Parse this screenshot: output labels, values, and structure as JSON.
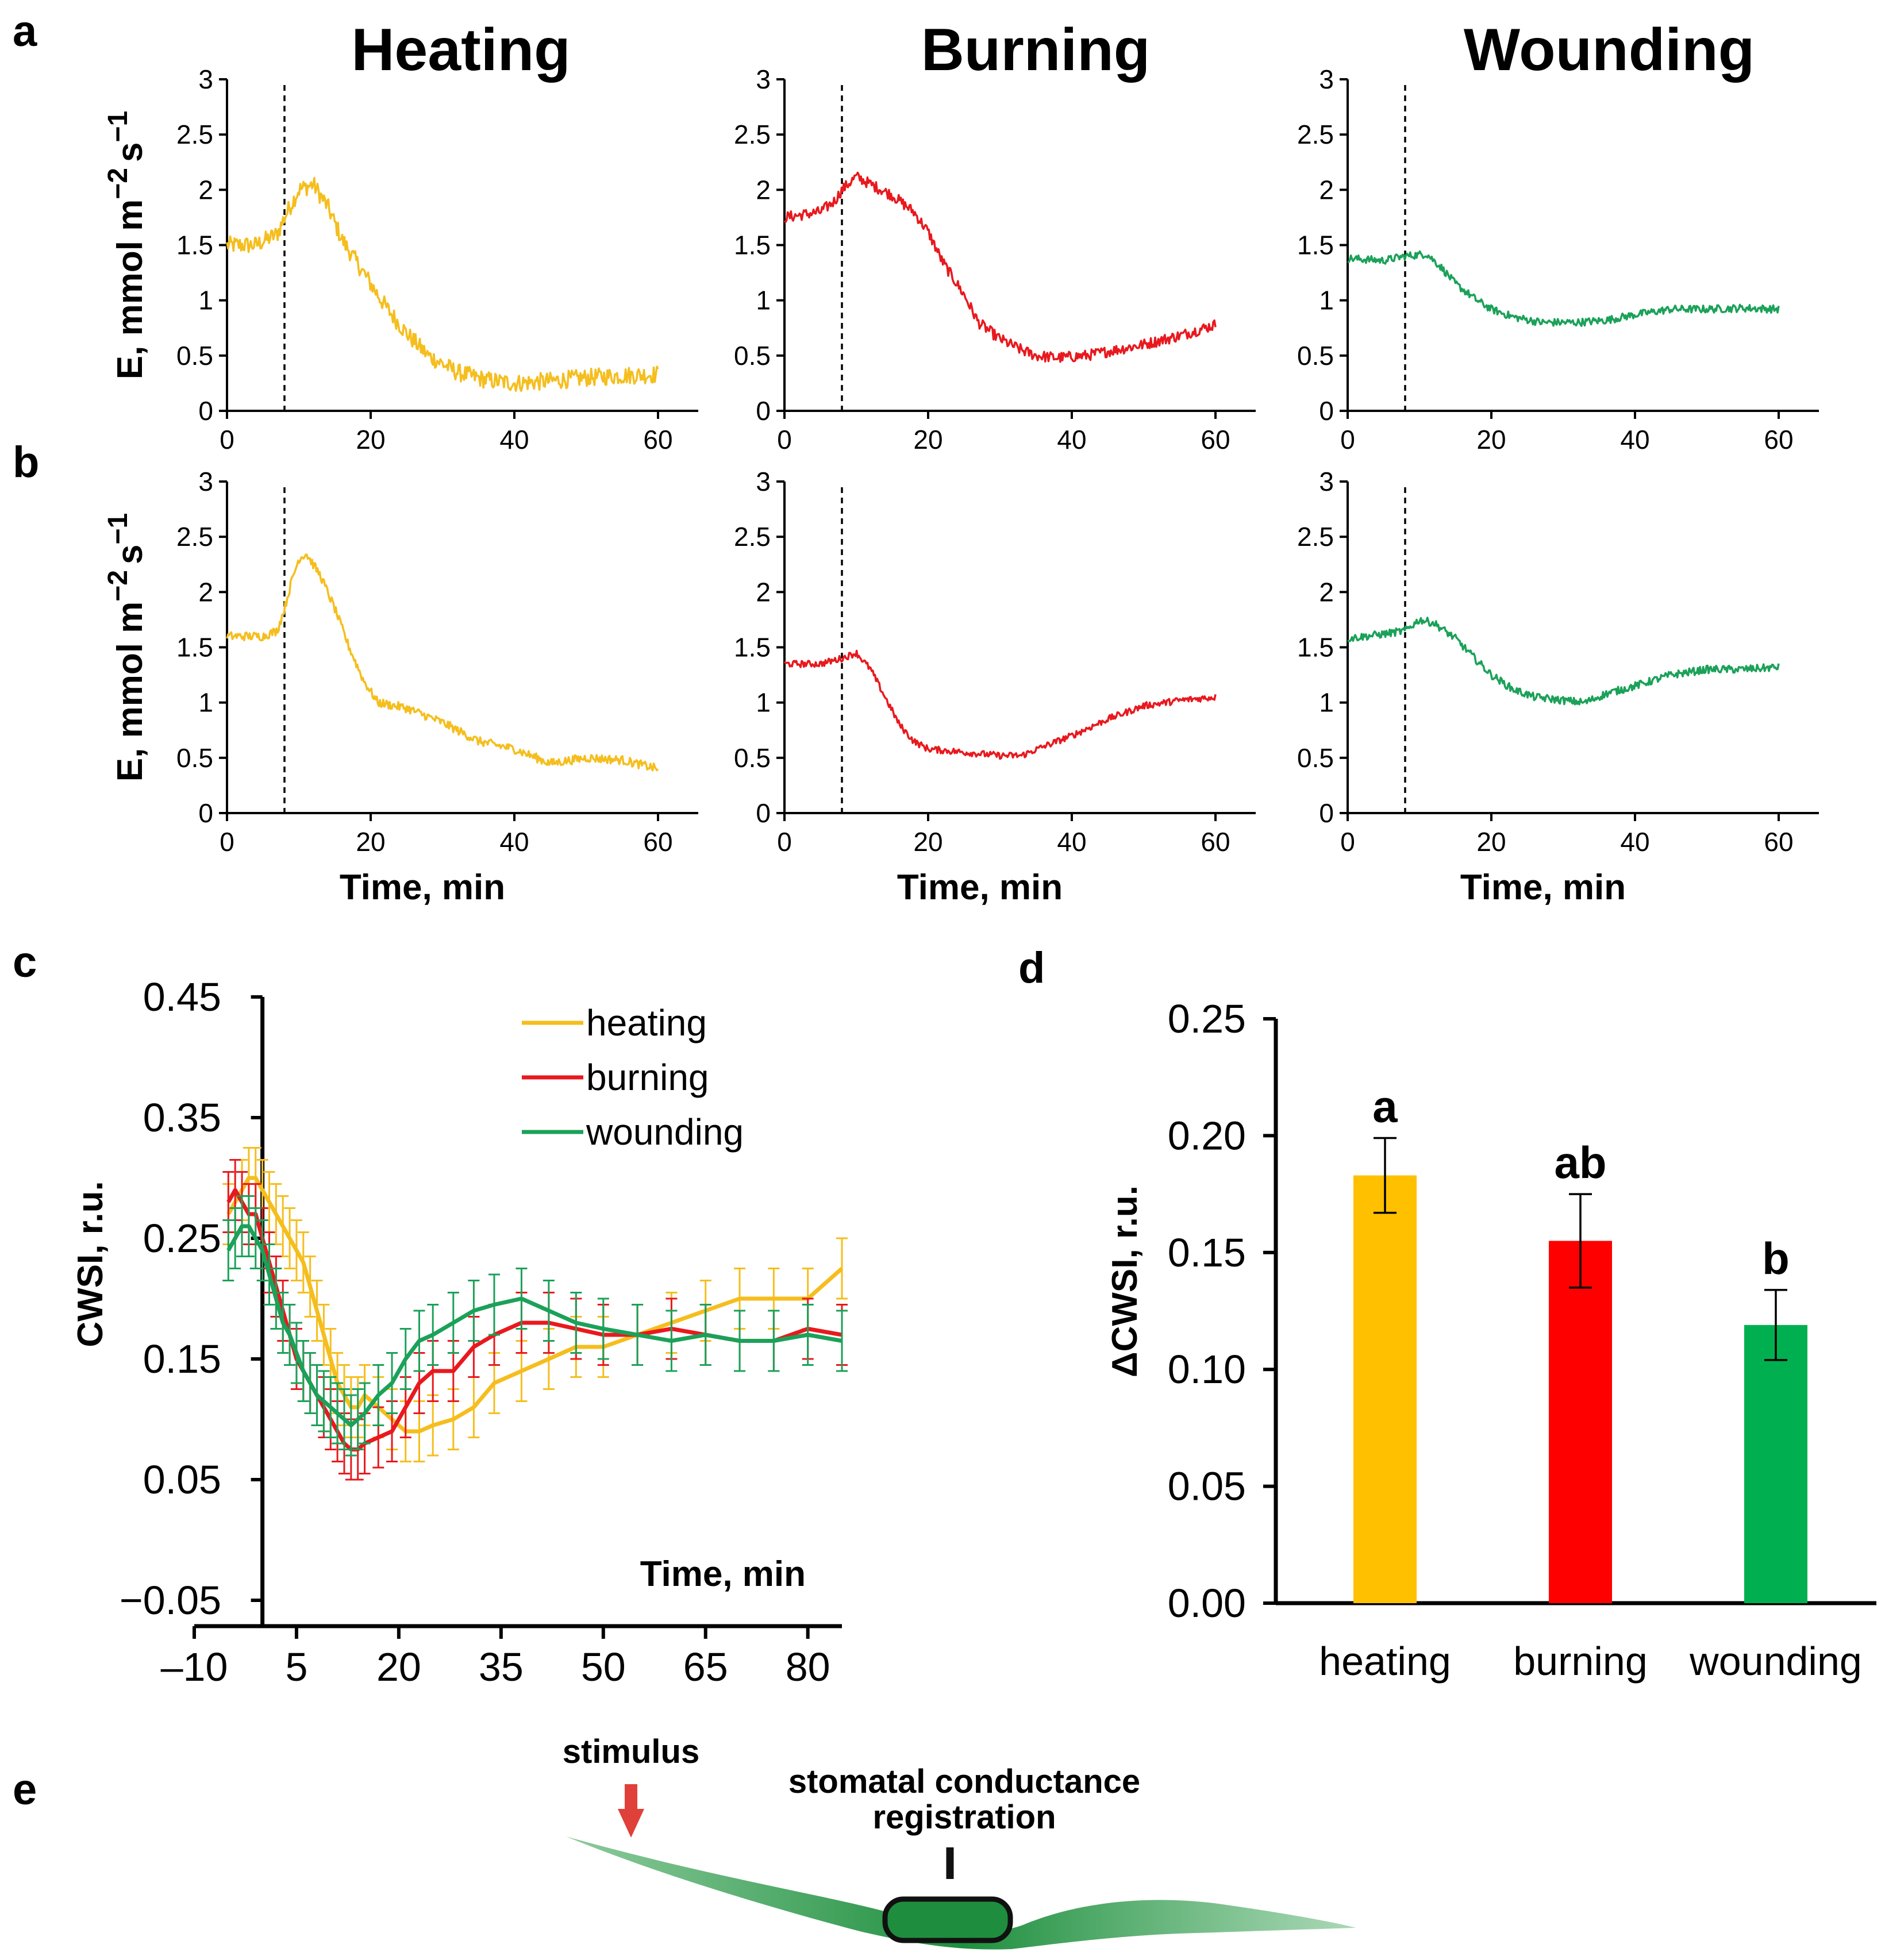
{
  "panel_letters": [
    "a",
    "b",
    "c",
    "d",
    "e"
  ],
  "column_titles": [
    "Heating",
    "Burning",
    "Wounding"
  ],
  "colors": {
    "heating": "#F5BE1E",
    "burning": "#E8191E",
    "wounding": "#1BA159",
    "heating_bar": "#FFC000",
    "burning_bar": "#FF0000",
    "wounding_bar": "#00B050",
    "leaf": "#2E9E4B"
  },
  "chart_data": [
    {
      "id": "a-heating",
      "type": "line",
      "panel": "a",
      "xlim": [
        0,
        60
      ],
      "ylim": [
        0,
        3
      ],
      "xticks": [
        0,
        20,
        40,
        60
      ],
      "yticks": [
        0,
        0.5,
        1,
        1.5,
        2,
        2.5,
        3
      ],
      "ylabel_main": "E, mmol m",
      "ylabel_sup1": "−2",
      "ylabel_mid": "s",
      "ylabel_sup2": "−1",
      "stimulus_time": 8,
      "noise": 0.08,
      "color": "#F5BE1E",
      "series": [
        {
          "name": "heating",
          "x": [
            0,
            4,
            7,
            8,
            10,
            12,
            14,
            16,
            18,
            20,
            22,
            25,
            28,
            32,
            36,
            40,
            45,
            50,
            55,
            60
          ],
          "values": [
            1.5,
            1.5,
            1.6,
            1.75,
            2.0,
            2.05,
            1.85,
            1.55,
            1.35,
            1.15,
            0.95,
            0.7,
            0.5,
            0.35,
            0.28,
            0.25,
            0.27,
            0.3,
            0.32,
            0.33
          ]
        }
      ]
    },
    {
      "id": "a-burning",
      "type": "line",
      "panel": "a",
      "xlim": [
        0,
        60
      ],
      "ylim": [
        0,
        3
      ],
      "xticks": [
        0,
        20,
        40,
        60
      ],
      "yticks": [
        0,
        0.5,
        1,
        1.5,
        2,
        2.5,
        3
      ],
      "stimulus_time": 8,
      "noise": 0.05,
      "color": "#E8191E",
      "series": [
        {
          "name": "burning",
          "x": [
            0,
            5,
            7,
            8,
            10,
            12,
            15,
            18,
            20,
            22,
            25,
            27,
            30,
            33,
            35,
            38,
            42,
            46,
            50,
            55,
            60
          ],
          "values": [
            1.75,
            1.8,
            1.9,
            2.0,
            2.12,
            2.05,
            1.95,
            1.8,
            1.62,
            1.35,
            1.05,
            0.8,
            0.65,
            0.55,
            0.5,
            0.48,
            0.5,
            0.55,
            0.6,
            0.68,
            0.78
          ]
        }
      ]
    },
    {
      "id": "a-wounding",
      "type": "line",
      "panel": "a",
      "xlim": [
        0,
        60
      ],
      "ylim": [
        0,
        3
      ],
      "xticks": [
        0,
        20,
        40,
        60
      ],
      "yticks": [
        0,
        0.5,
        1,
        1.5,
        2,
        2.5,
        3
      ],
      "stimulus_time": 8,
      "noise": 0.035,
      "color": "#1BA159",
      "series": [
        {
          "name": "wounding",
          "x": [
            0,
            5,
            8,
            11,
            13,
            15,
            18,
            20,
            23,
            27,
            32,
            36,
            40,
            45,
            50,
            55,
            60
          ],
          "values": [
            1.38,
            1.36,
            1.4,
            1.42,
            1.3,
            1.15,
            1.0,
            0.92,
            0.85,
            0.8,
            0.8,
            0.82,
            0.87,
            0.92,
            0.92,
            0.93,
            0.92
          ]
        }
      ]
    },
    {
      "id": "b-heating",
      "type": "line",
      "panel": "b",
      "xlim": [
        0,
        60
      ],
      "ylim": [
        0,
        3
      ],
      "xticks": [
        0,
        20,
        40,
        60
      ],
      "yticks": [
        0,
        0.5,
        1,
        1.5,
        2,
        2.5,
        3
      ],
      "xlabel": "Time, min",
      "ylabel_main": "E, mmol m",
      "ylabel_sup1": "−2",
      "ylabel_mid": "s",
      "ylabel_sup2": "−1",
      "stimulus_time": 8,
      "noise": 0.04,
      "color": "#F5BE1E",
      "series": [
        {
          "name": "heating",
          "x": [
            0,
            5,
            7,
            8,
            9,
            10,
            11,
            13,
            15,
            17,
            19,
            21,
            25,
            30,
            35,
            40,
            45,
            50,
            55,
            60
          ],
          "values": [
            1.6,
            1.6,
            1.65,
            1.85,
            2.1,
            2.3,
            2.35,
            2.15,
            1.85,
            1.5,
            1.2,
            1.0,
            0.95,
            0.82,
            0.65,
            0.58,
            0.45,
            0.5,
            0.48,
            0.4
          ]
        }
      ]
    },
    {
      "id": "b-burning",
      "type": "line",
      "panel": "b",
      "xlim": [
        0,
        60
      ],
      "ylim": [
        0,
        3
      ],
      "xticks": [
        0,
        20,
        40,
        60
      ],
      "yticks": [
        0,
        0.5,
        1,
        1.5,
        2,
        2.5,
        3
      ],
      "xlabel": "Time, min",
      "stimulus_time": 8,
      "noise": 0.03,
      "color": "#E8191E",
      "series": [
        {
          "name": "burning",
          "x": [
            0,
            5,
            8,
            10,
            12,
            14,
            16,
            18,
            20,
            25,
            30,
            33,
            36,
            40,
            45,
            50,
            55,
            60
          ],
          "values": [
            1.35,
            1.35,
            1.4,
            1.45,
            1.3,
            1.05,
            0.8,
            0.65,
            0.58,
            0.55,
            0.52,
            0.52,
            0.6,
            0.7,
            0.85,
            0.97,
            1.02,
            1.05
          ]
        }
      ]
    },
    {
      "id": "b-wounding",
      "type": "line",
      "panel": "b",
      "xlim": [
        0,
        60
      ],
      "ylim": [
        0,
        3
      ],
      "xticks": [
        0,
        20,
        40,
        60
      ],
      "yticks": [
        0,
        0.5,
        1,
        1.5,
        2,
        2.5,
        3
      ],
      "xlabel": "Time, min",
      "stimulus_time": 8,
      "noise": 0.035,
      "color": "#1BA159",
      "series": [
        {
          "name": "wounding",
          "x": [
            0,
            5,
            8,
            10,
            12,
            15,
            18,
            20,
            23,
            26,
            30,
            33,
            36,
            40,
            45,
            50,
            55,
            60
          ],
          "values": [
            1.58,
            1.62,
            1.65,
            1.75,
            1.72,
            1.58,
            1.38,
            1.25,
            1.12,
            1.05,
            1.02,
            1.0,
            1.08,
            1.15,
            1.25,
            1.3,
            1.3,
            1.32
          ]
        }
      ]
    },
    {
      "id": "c",
      "type": "line",
      "panel": "c",
      "xlim": [
        -10,
        85
      ],
      "ylim": [
        -0.05,
        0.45
      ],
      "xticks": [
        -10,
        5,
        20,
        35,
        50,
        65,
        80
      ],
      "xtick_labels": [
        "–10",
        "5",
        "20",
        "35",
        "50",
        "65",
        "80"
      ],
      "yticks": [
        0.45,
        0.35,
        0.25,
        0.15,
        0.05,
        -0.05
      ],
      "ytick_labels": [
        "0.45",
        "0.35",
        "0.25",
        "0.15",
        "0.05",
        "−0.05"
      ],
      "xlabel": "Time, min",
      "ylabel": "CWSI, r.u.",
      "vertical_axis_at": 0,
      "x": [
        -5,
        -4,
        -3,
        -2,
        -1,
        0,
        1,
        2,
        3,
        4,
        5,
        6,
        7,
        8,
        9,
        10,
        11,
        12,
        13,
        14,
        15,
        17,
        19,
        21,
        23,
        25,
        28,
        31,
        34,
        38,
        42,
        46,
        50,
        55,
        60,
        65,
        70,
        75,
        80,
        85
      ],
      "series": [
        {
          "name": "heating",
          "values": [
            0.27,
            0.28,
            0.29,
            0.3,
            0.3,
            0.29,
            0.28,
            0.27,
            0.26,
            0.25,
            0.24,
            0.23,
            0.21,
            0.19,
            0.17,
            0.15,
            0.13,
            0.12,
            0.11,
            0.11,
            0.12,
            0.11,
            0.1,
            0.09,
            0.09,
            0.095,
            0.1,
            0.11,
            0.13,
            0.14,
            0.15,
            0.16,
            0.16,
            0.17,
            0.18,
            0.19,
            0.2,
            0.2,
            0.2,
            0.225
          ]
        },
        {
          "name": "burning",
          "values": [
            0.28,
            0.29,
            0.28,
            0.27,
            0.27,
            0.25,
            0.23,
            0.21,
            0.19,
            0.17,
            0.15,
            0.14,
            0.13,
            0.12,
            0.11,
            0.1,
            0.09,
            0.08,
            0.075,
            0.075,
            0.08,
            0.085,
            0.09,
            0.11,
            0.13,
            0.14,
            0.14,
            0.16,
            0.17,
            0.18,
            0.18,
            0.175,
            0.17,
            0.17,
            0.175,
            0.17,
            0.165,
            0.165,
            0.175,
            0.17
          ]
        },
        {
          "name": "wounding",
          "values": [
            0.24,
            0.25,
            0.26,
            0.26,
            0.25,
            0.24,
            0.22,
            0.2,
            0.18,
            0.17,
            0.155,
            0.14,
            0.13,
            0.12,
            0.115,
            0.11,
            0.105,
            0.1,
            0.095,
            0.1,
            0.105,
            0.12,
            0.13,
            0.15,
            0.165,
            0.17,
            0.18,
            0.19,
            0.195,
            0.2,
            0.19,
            0.18,
            0.175,
            0.17,
            0.165,
            0.17,
            0.165,
            0.165,
            0.17,
            0.165
          ]
        }
      ],
      "error": 0.025,
      "legend": [
        "heating",
        "burning",
        "wounding"
      ],
      "legend_position": "top-right"
    },
    {
      "id": "d",
      "type": "bar",
      "panel": "d",
      "categories": [
        "heating",
        "burning",
        "wounding"
      ],
      "values": [
        0.183,
        0.155,
        0.119
      ],
      "errors": [
        0.016,
        0.02,
        0.015
      ],
      "significance": [
        "a",
        "ab",
        "b"
      ],
      "ylim": [
        0,
        0.25
      ],
      "yticks": [
        0.25,
        0.2,
        0.15,
        0.1,
        0.05,
        0
      ],
      "ytick_labels": [
        "0.25",
        "0.20",
        "0.15",
        "0.10",
        "0.05",
        "0.00"
      ],
      "ylabel": "ΔCWSI, r.u."
    }
  ],
  "schematic": {
    "stimulus_label": "stimulus",
    "registration_label_line1": "stomatal conductance",
    "registration_label_line2": "registration"
  }
}
